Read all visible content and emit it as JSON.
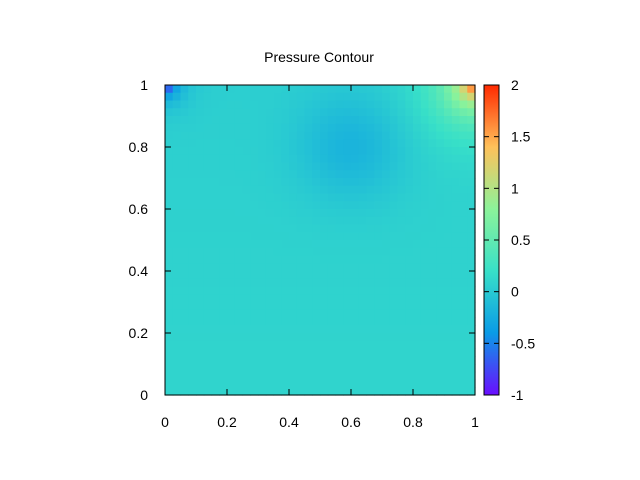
{
  "chart_data": {
    "type": "heatmap",
    "title": "Pressure Contour",
    "xlabel": "",
    "ylabel": "",
    "xlim": [
      0,
      1
    ],
    "ylim": [
      0,
      1
    ],
    "x_ticks": [
      "0",
      "0.2",
      "0.4",
      "0.6",
      "0.8",
      "1"
    ],
    "x_tick_values": [
      0,
      0.2,
      0.4,
      0.6,
      0.8,
      1
    ],
    "y_ticks": [
      "0",
      "0.2",
      "0.4",
      "0.6",
      "0.8",
      "1"
    ],
    "y_tick_values": [
      0,
      0.2,
      0.4,
      0.6,
      0.8,
      1
    ],
    "colorbar": {
      "range": [
        -1,
        2
      ],
      "ticks": [
        "2",
        "1.5",
        "1",
        "0.5",
        "0",
        "-0.5",
        "-1"
      ],
      "tick_values": [
        2,
        1.5,
        1,
        0.5,
        0,
        -0.5,
        -1
      ],
      "palette": [
        "#6a0dff",
        "#0a9be6",
        "#38e0c8",
        "#8cf39a",
        "#ffc15a",
        "#ff2a00"
      ]
    },
    "grid": false,
    "field_description": "Near-zero pressure (~0.1) over most of the cavity, slight low (~-0.15) vortex region centered near (0.6, 0.8), strong low (~-1) at top-left corner (0, 1), strong high (~2) at top-right corner (1, 1)",
    "grid_resolution": [
      40,
      40
    ],
    "features": {
      "base_value": 0.1,
      "vortex_center": [
        0.6,
        0.8
      ],
      "vortex_min": -0.15,
      "top_left_corner_value": -1.0,
      "top_right_corner_value": 2.0
    }
  }
}
